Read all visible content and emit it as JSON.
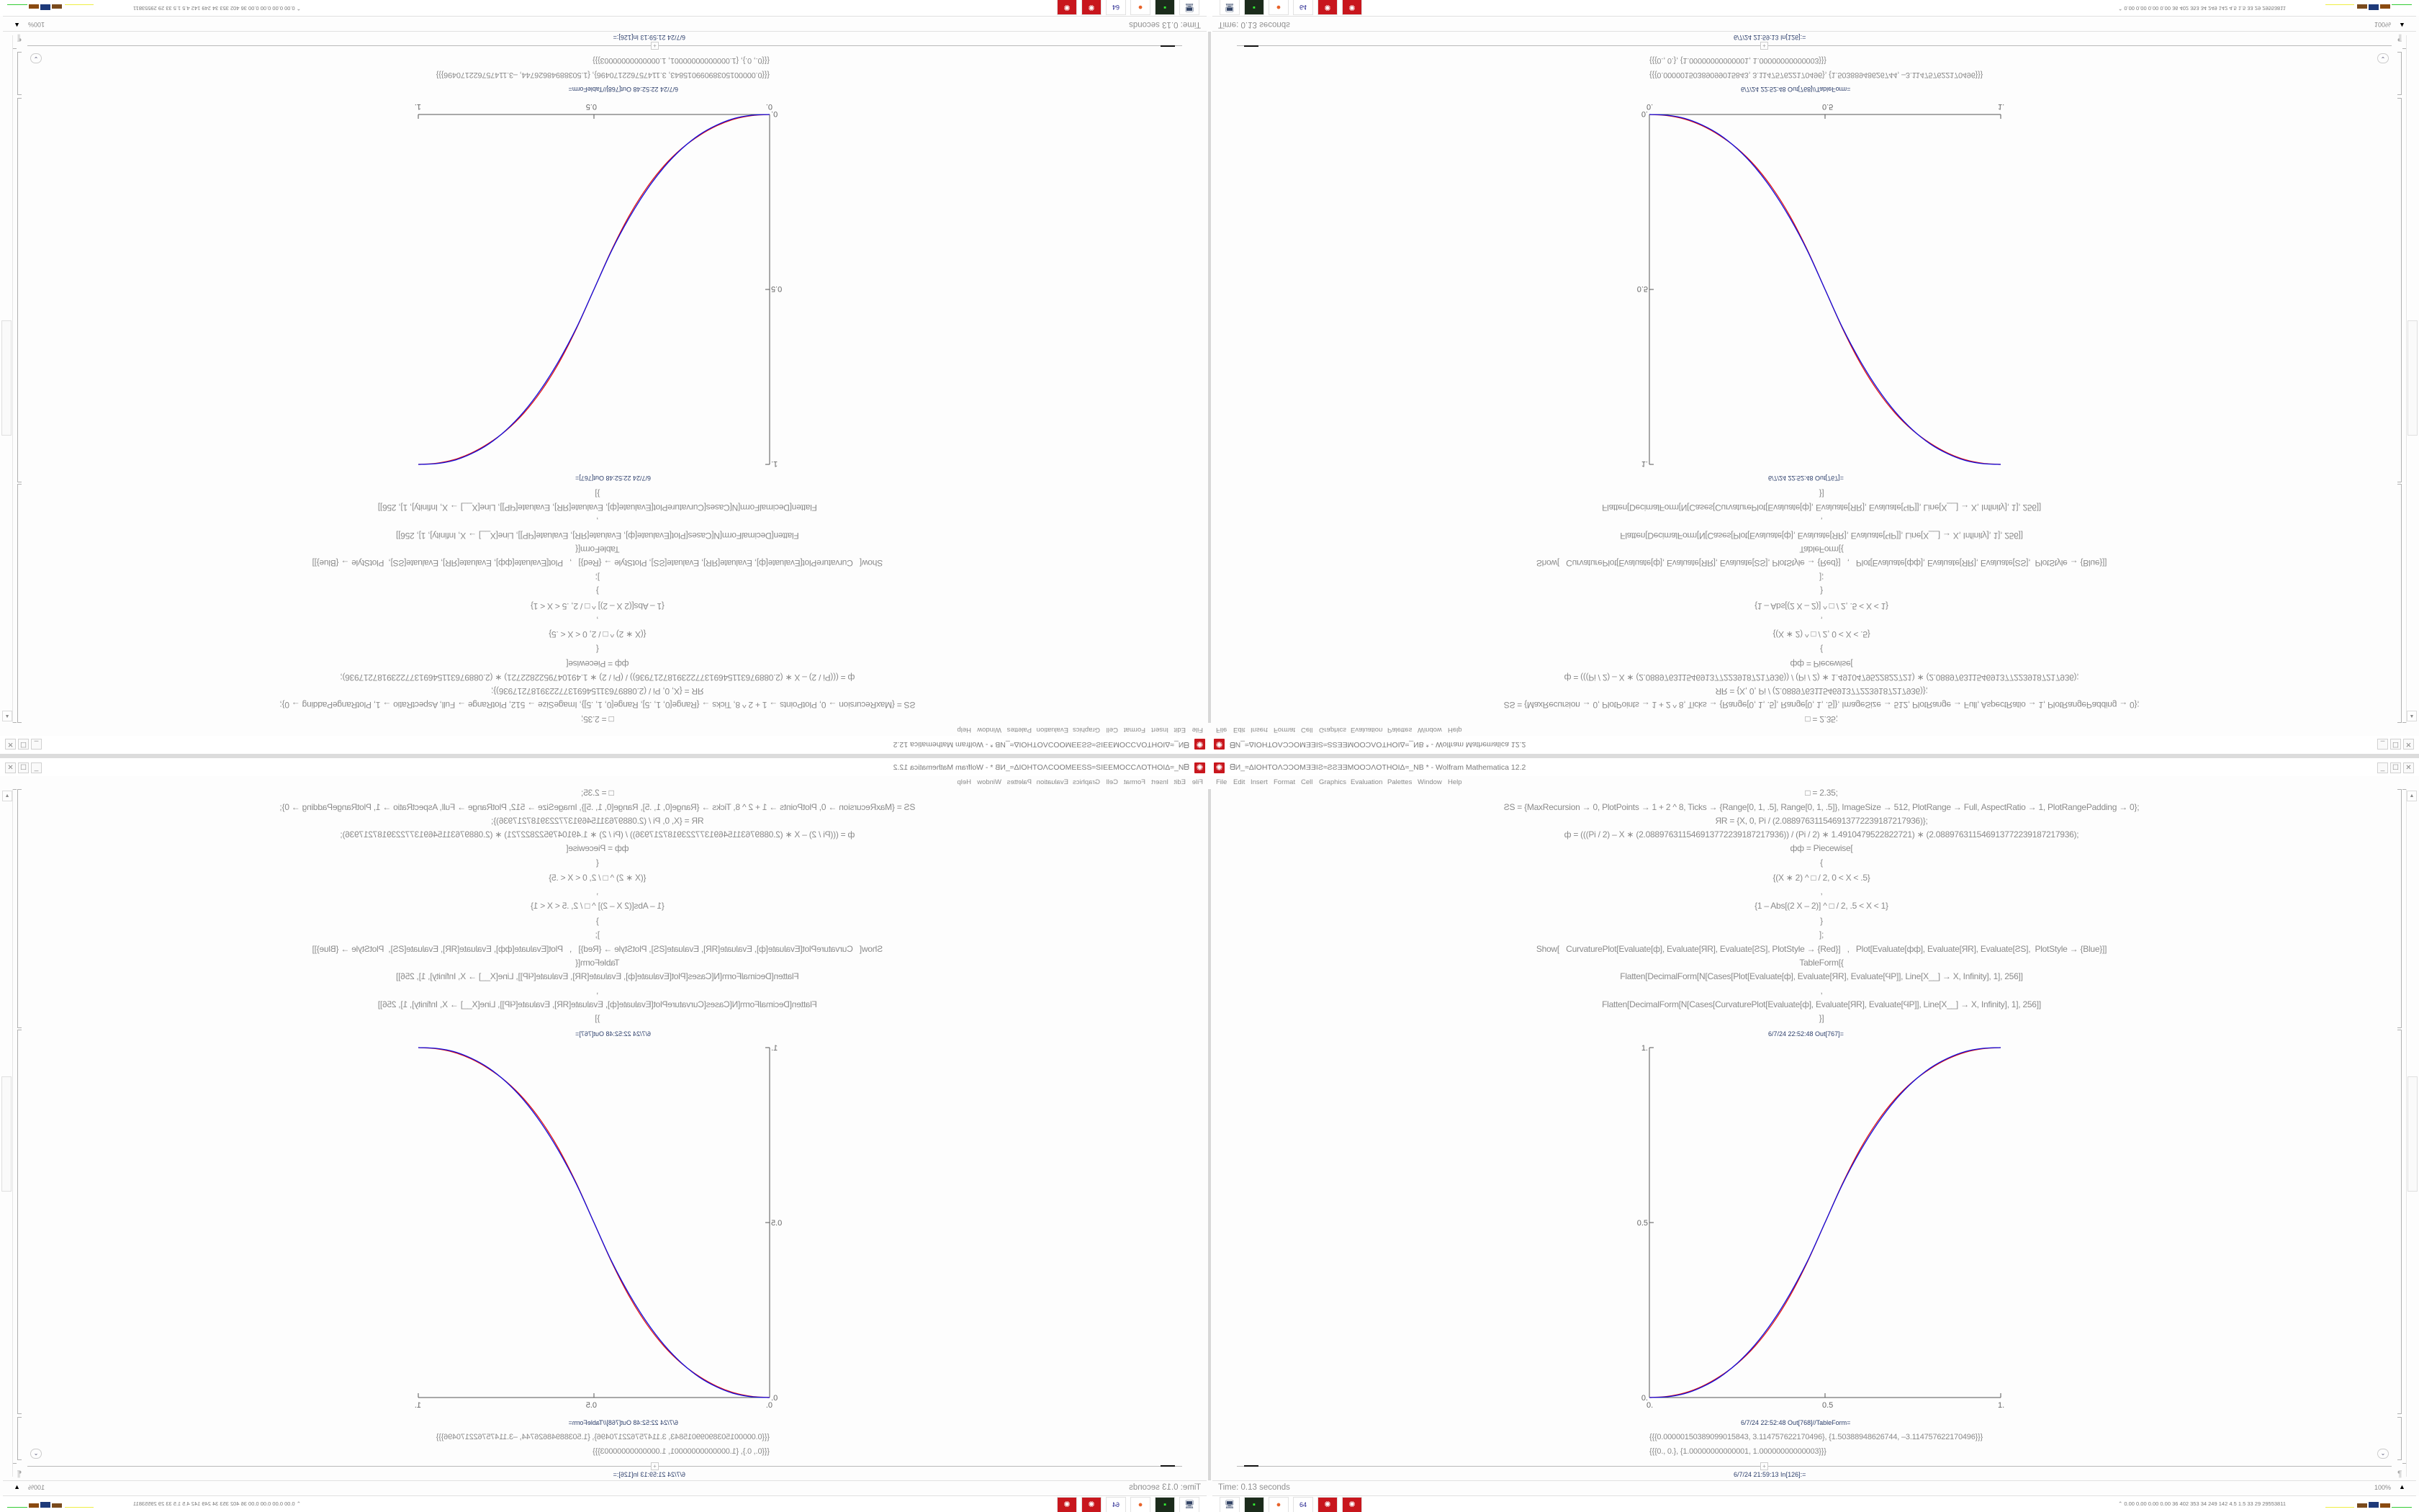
{
  "window": {
    "title": "ᗺИ_≈ΔIOHTOΛƆƆOMƎƎIƧ≈ƧƧƎƎMOOƆΛOTHOIΔ≈_NB * - Wolfram Mathematica 12.2",
    "app_icon": "mathematica-icon",
    "buttons": [
      "minimize",
      "maximize",
      "close"
    ]
  },
  "menu": [
    "File",
    "Edit",
    "Insert",
    "Format",
    "Cell",
    "Graphics",
    "Evaluation",
    "Palettes",
    "Window",
    "Help"
  ],
  "notebook": {
    "input_lines": [
      "□ = 2.35;",
      "ƧS = {MaxRecursion → 0, PlotPoints → 1 + 2 ^ 8, Ticks → {Range[0, 1, .5], Range[0, 1, .5]}, ImageSize → 512, PlotRange → Full, AspectRatio → 1, PlotRangePadding → 0};",
      "ЯR = {X, 0, Pi / (2.0889763115469137722391872179​36)};",
      "ф = (((Pi / 2) – X ∗ (2.088976311546913772239187217936)) / (Pi / 2) ∗ 1.4910479522822721) ∗ (2.088976311546913772239187217936);",
      "фф = Piecewise[",
      "{",
      "{(X ∗ 2) ^ □ / 2, 0 < X < .5}",
      ",",
      "{1 – Abs[(2 X – 2)] ^ □ / 2, .5 < X < 1}",
      "}",
      "];",
      "Show[   CurvaturePlot[Evaluate[ф], Evaluate[ЯR], Evaluate[ƧS], PlotStyle → {Red}]   ,   Plot[Evaluate[фф], Evaluate[ЯR], Evaluate[ƧS],  PlotStyle → {Blue}]]",
      "TableForm[{",
      "Flatten[DecimalForm[N[Cases[Plot[Evaluate[ф], Evaluate[ЯR], Evaluate[ϤP]], Line[X__] → X, Infinity], 1], 256]]",
      ",",
      "Flatten[DecimalForm[N[Cases[CurvaturePlot[Evaluate[ф], Evaluate[ЯR], Evaluate[ϤP]], Line[X__] → X, Infinity], 1], 256]]",
      "}]"
    ],
    "plot_out_label": "6/7/24 22:52:48 Out[767]=",
    "table_out_label": "6/7/24 22:52:48 Out[768]//TableForm=",
    "table_rows": [
      "{{{0.0000015038909901584​3, 3.114757622170496}, {1.50388948626744, –3.114757622170496}}}",
      "{{{0., 0.}, {1.00000000000001, 1.00000000000003}}}"
    ],
    "next_in_label": "6/7/24 21:59:13 In[126]:="
  },
  "chart_data": {
    "type": "line",
    "x": [
      0,
      0.05,
      0.1,
      0.15,
      0.2,
      0.25,
      0.3,
      0.35,
      0.4,
      0.45,
      0.5,
      0.55,
      0.6,
      0.65,
      0.7,
      0.75,
      0.8,
      0.85,
      0.9,
      0.95,
      1
    ],
    "series": [
      {
        "color": "#e01010",
        "values": [
          0,
          0.003,
          0.013,
          0.032,
          0.06,
          0.097,
          0.146,
          0.21,
          0.29,
          0.388,
          0.5,
          0.612,
          0.71,
          0.79,
          0.854,
          0.903,
          0.94,
          0.968,
          0.987,
          0.997,
          1
        ]
      },
      {
        "color": "#1010e0",
        "values": [
          0,
          0.002,
          0.011,
          0.03,
          0.058,
          0.098,
          0.15,
          0.216,
          0.296,
          0.39,
          0.5,
          0.61,
          0.704,
          0.784,
          0.85,
          0.902,
          0.942,
          0.97,
          0.989,
          0.998,
          1
        ]
      }
    ],
    "xlim": [
      0,
      1
    ],
    "ylim": [
      0,
      1
    ],
    "x_ticks": [
      "0.",
      "0.5",
      "1."
    ],
    "y_ticks": [
      "0.",
      "0.5",
      "1."
    ],
    "grid": false
  },
  "status": {
    "time": "Time: 0.13 seconds",
    "zoom": "100%"
  },
  "taskbar": {
    "icons": [
      "remote-desktop-icon",
      "terminal-icon",
      "firefox-icon",
      "floppy-64-icon",
      "mathematica-icon",
      "mathematica-icon"
    ],
    "tray_text": "⌃  0.00 0.00 0.00 0.00  36  402  353  34  249  142  4.5  1.5  33  29  29553811"
  }
}
